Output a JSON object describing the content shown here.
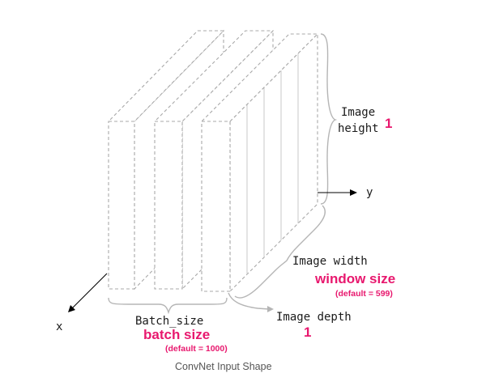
{
  "diagram": {
    "caption": "ConvNet Input Shape",
    "axes": {
      "x": "x",
      "y": "y"
    },
    "height_label": {
      "line1": "Image",
      "line2": "height",
      "value": "1"
    },
    "width_label": {
      "line1": "Image width",
      "highlight": "window size",
      "default_note": "(default = 599)"
    },
    "depth_label": {
      "line1": "Image depth",
      "value": "1"
    },
    "batch_label": {
      "line1": "Batch_size",
      "highlight": "batch size",
      "default_note": "(default = 1000)"
    },
    "colors": {
      "accent": "#e8186e",
      "outline": "#a9a9a9",
      "brace": "#b5b5b5",
      "caption": "#555555"
    }
  }
}
